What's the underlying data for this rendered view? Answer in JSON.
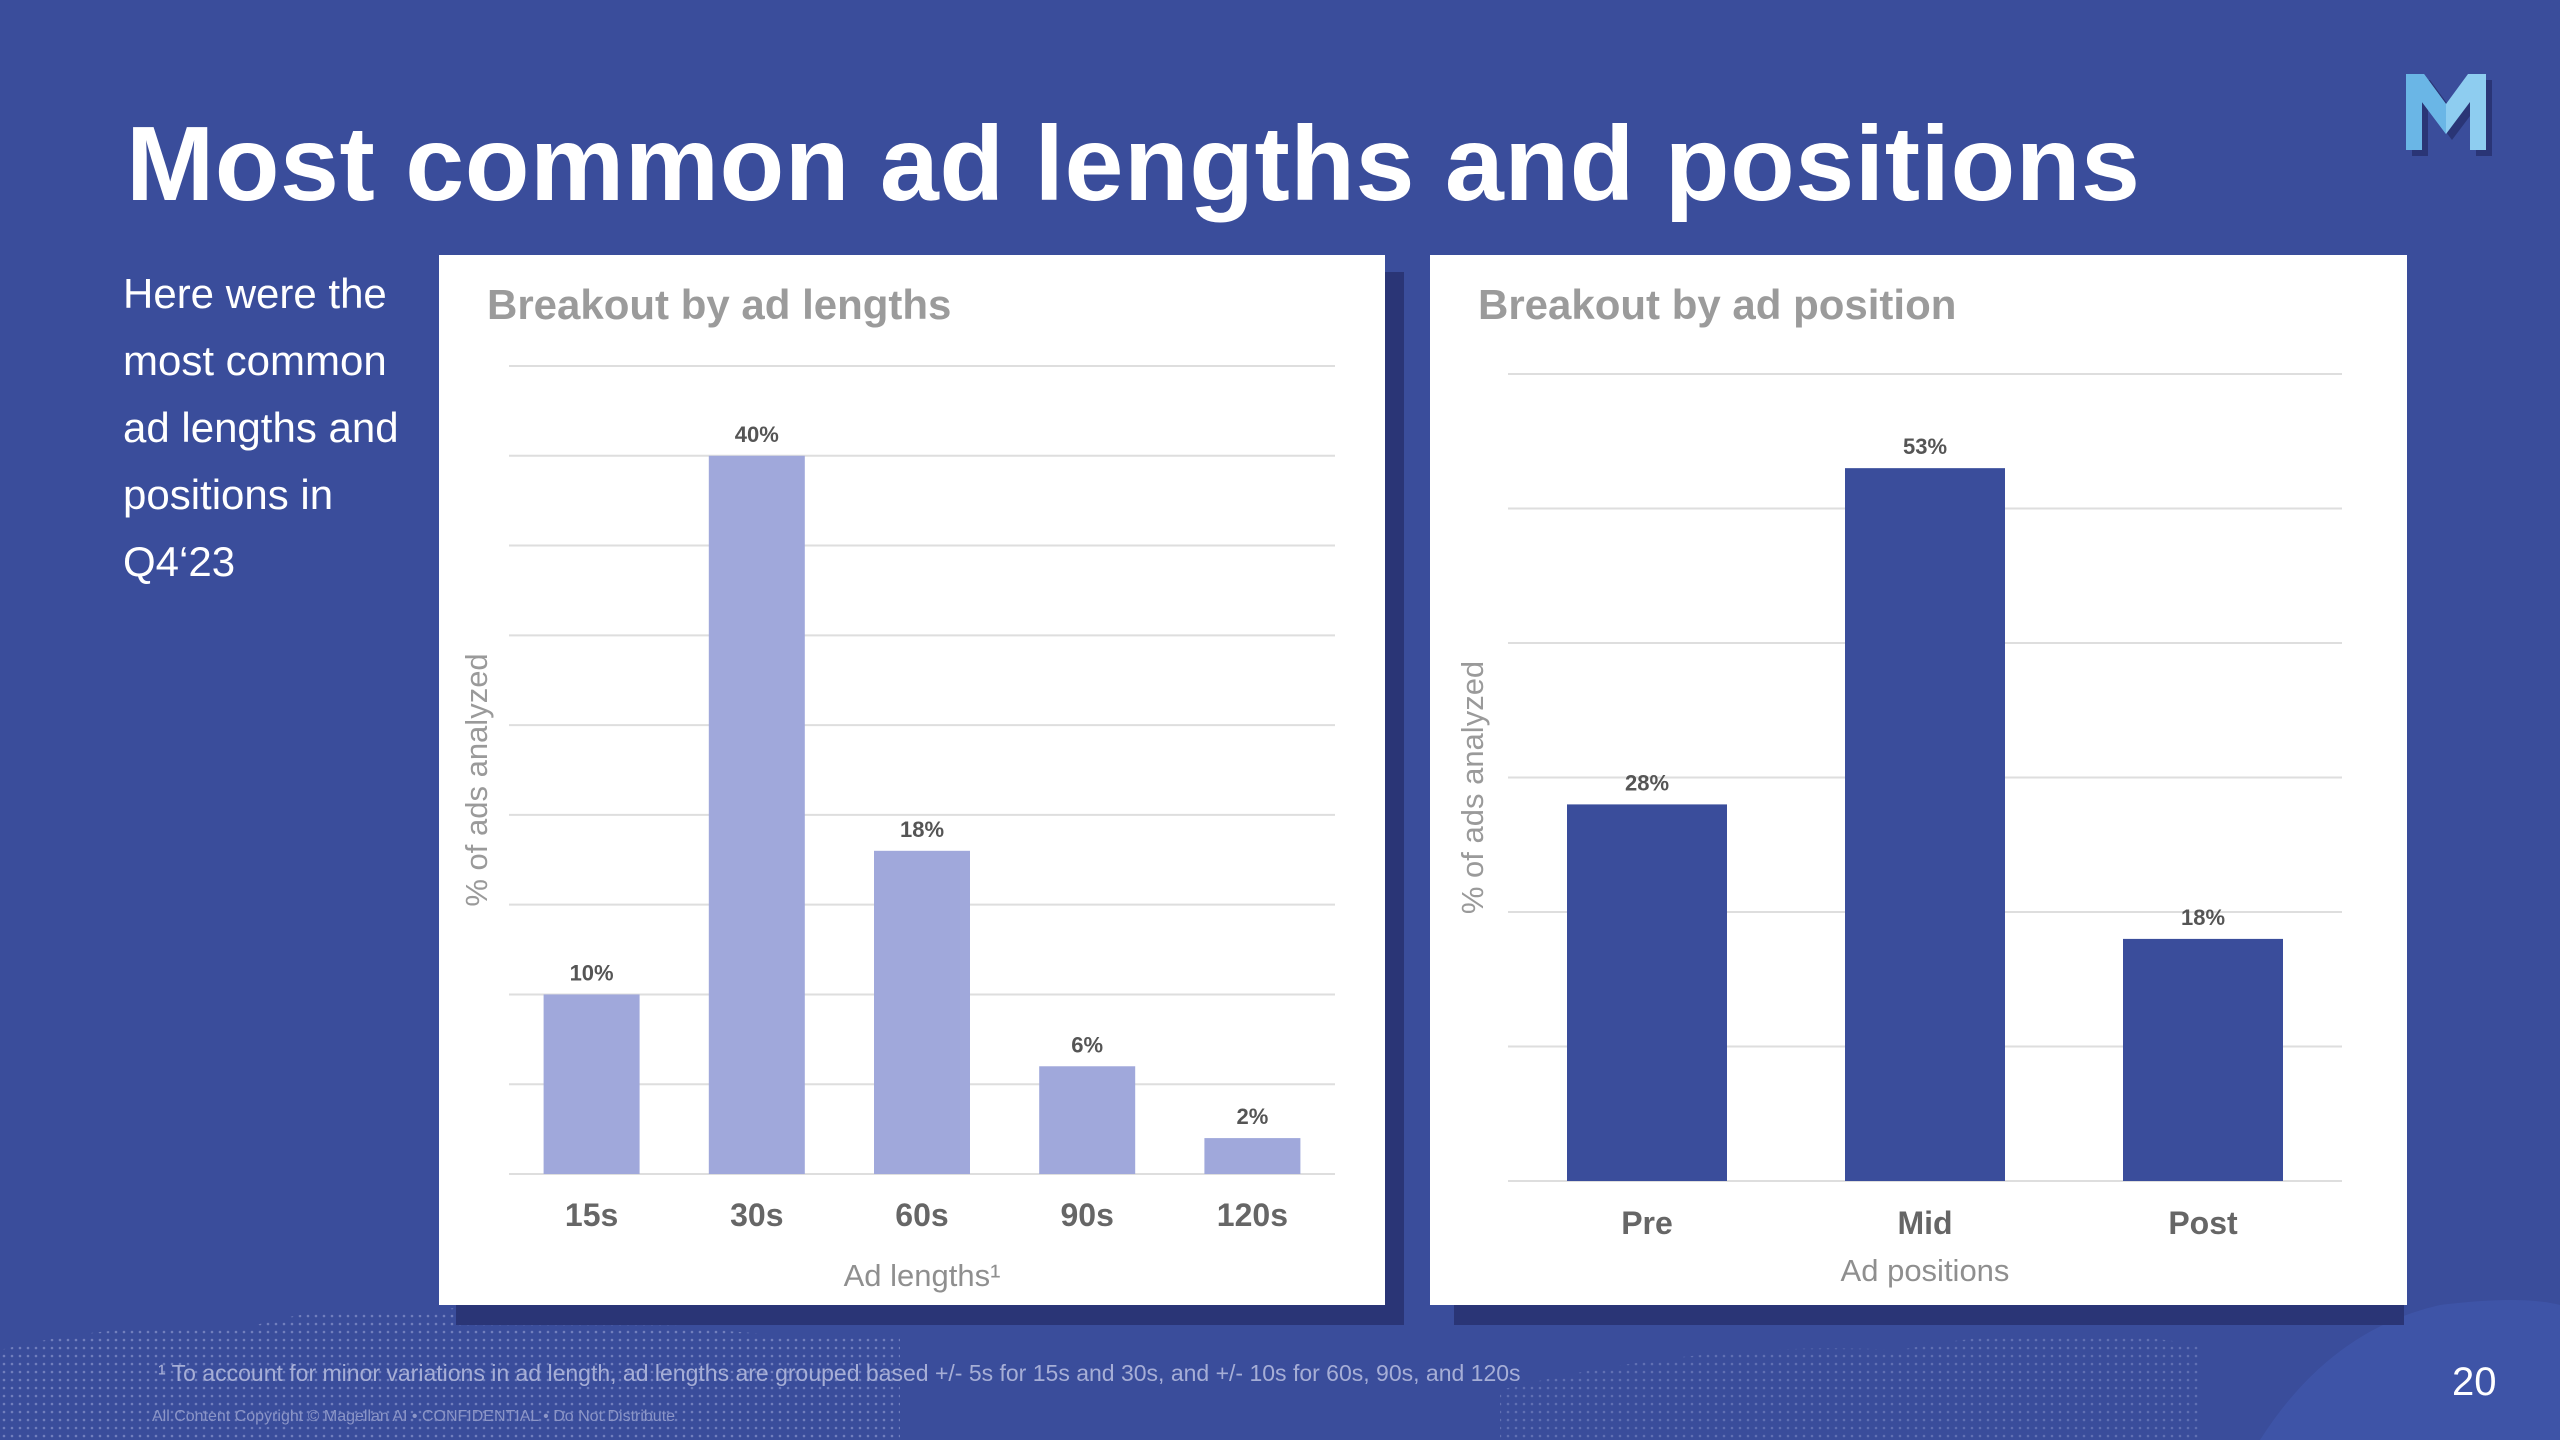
{
  "slide": {
    "title": "Most common ad lengths and positions",
    "intro_lines": [
      "Here were the",
      "most common",
      "ad lengths and",
      "positions in",
      "Q4‘23"
    ],
    "footnote": "¹ To account for minor variations in ad length, ad lengths are grouped based +/- 5s for 15s and 30s, and +/- 10s for 60s, 90s, and 120s",
    "copyright": "All Content Copyright © Magellan AI  •  CONFIDENTIAL  •  Do Not Distribute",
    "page_number": "20",
    "logo_icon": "magellan-m-logo-icon",
    "colors": {
      "background": "#3a4d9b",
      "lengths_bar": "#a0a8db",
      "position_bar": "#3a4d9b",
      "card": "#ffffff"
    }
  },
  "chart_data": [
    {
      "type": "bar",
      "title": "Breakout by ad lengths",
      "categories": [
        "15s",
        "30s",
        "60s",
        "90s",
        "120s"
      ],
      "values": [
        10,
        40,
        18,
        6,
        2
      ],
      "data_labels": [
        "10%",
        "40%",
        "18%",
        "6%",
        "2%"
      ],
      "xlabel": "Ad lengths¹",
      "ylabel": "% of ads analyzed",
      "ylim": [
        0,
        45
      ],
      "grid": true,
      "legend": "none"
    },
    {
      "type": "bar",
      "title": "Breakout by ad position",
      "categories": [
        "Pre",
        "Mid",
        "Post"
      ],
      "values": [
        28,
        53,
        18
      ],
      "data_labels": [
        "28%",
        "53%",
        "18%"
      ],
      "xlabel": "Ad positions",
      "ylabel": "% of ads analyzed",
      "ylim": [
        0,
        60
      ],
      "grid": true,
      "legend": "none"
    }
  ]
}
